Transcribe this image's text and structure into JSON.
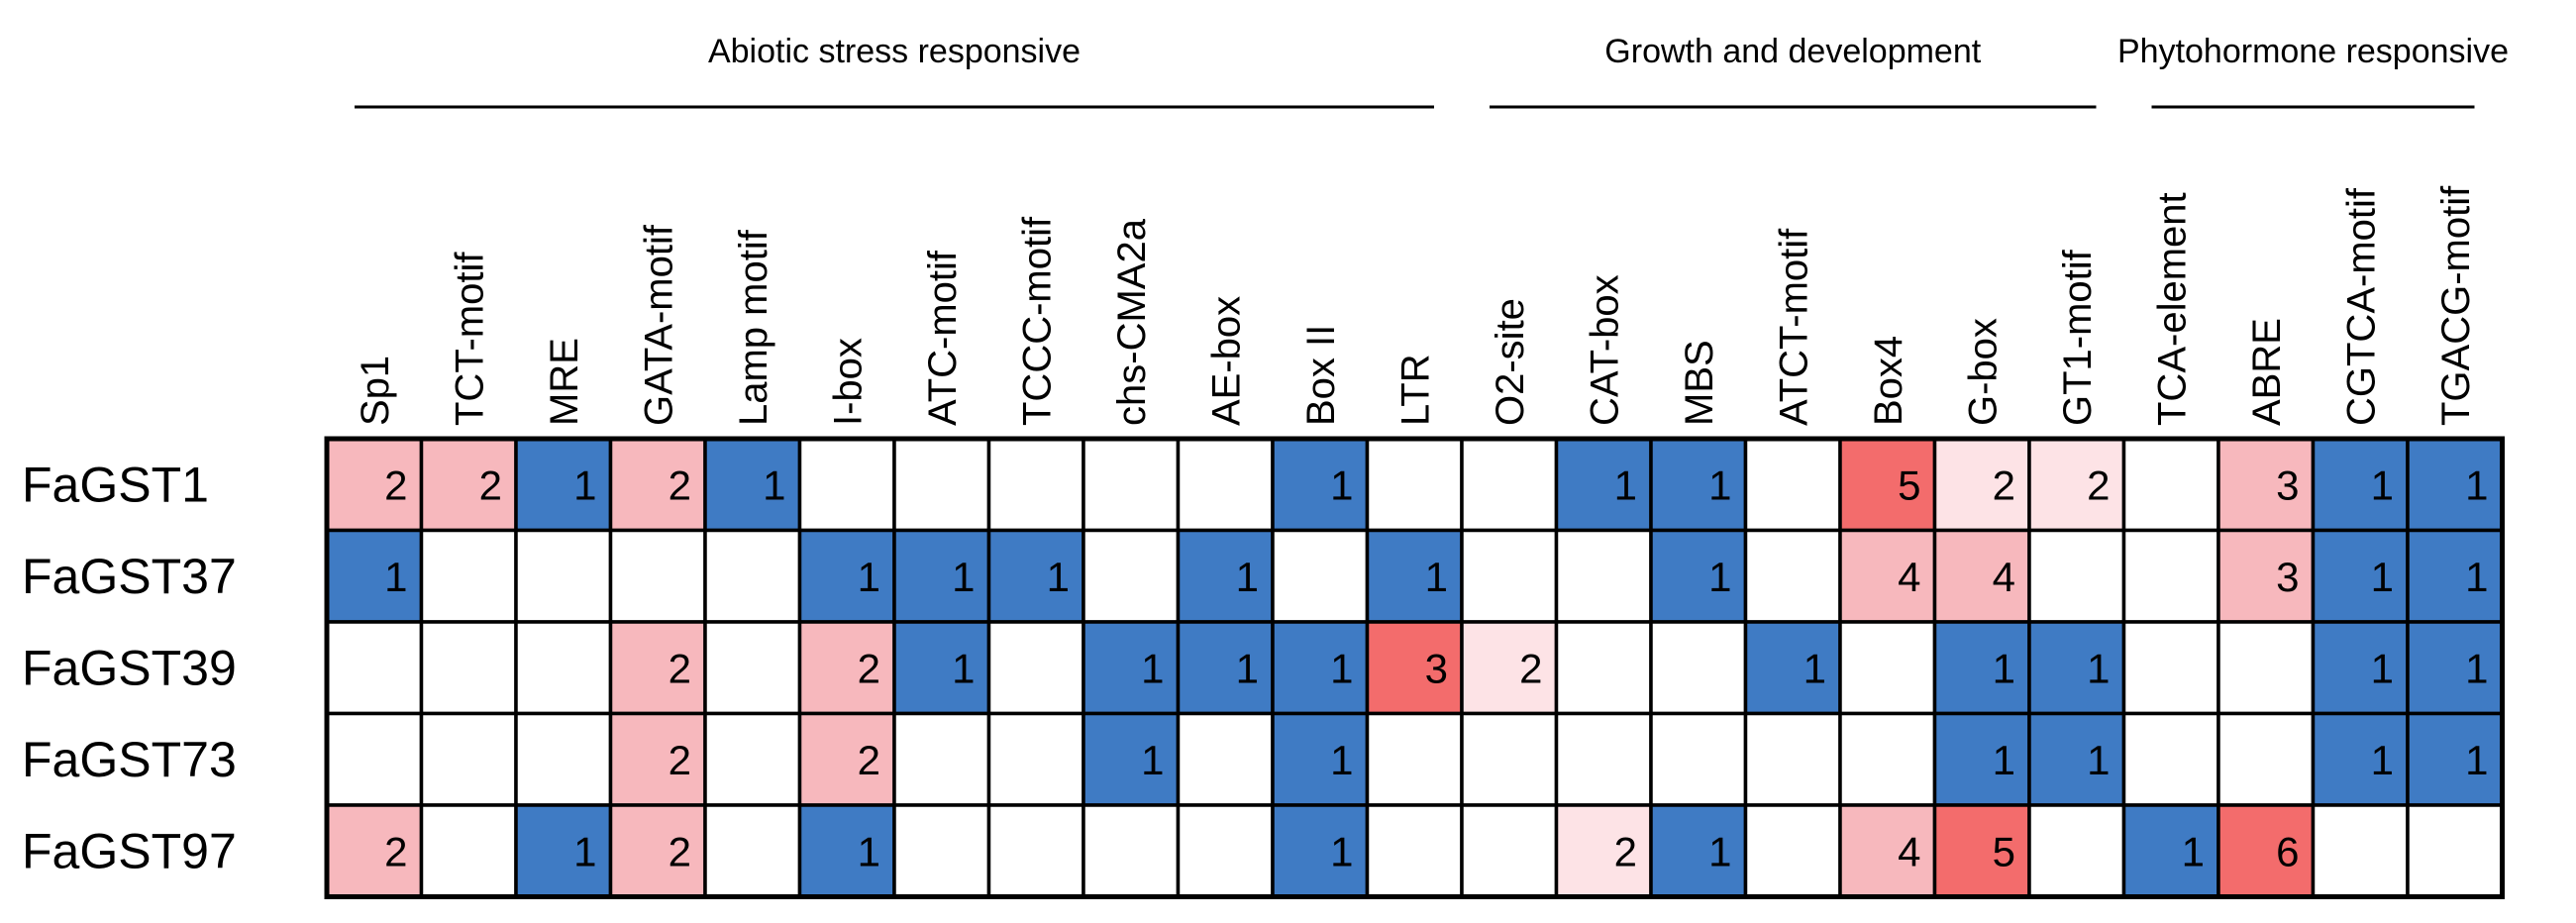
{
  "chart_data": {
    "type": "heatmap",
    "title": "",
    "groups": [
      {
        "name": "Abiotic stress responsive",
        "first": 0,
        "last": 11
      },
      {
        "name": "Growth and development",
        "first": 12,
        "last": 18
      },
      {
        "name": "Phytohormone responsive",
        "first": 19,
        "last": 22
      }
    ],
    "columns": [
      "Sp1",
      "TCT-motif",
      "MRE",
      "GATA-motif",
      "Lamp motif",
      "I-box",
      "ATC-motif",
      "TCCC-motif",
      "chs-CMA2a",
      "AE-box",
      "Box II",
      "LTR",
      "O2-site",
      "CAT-box",
      "MBS",
      "ATCT-motif",
      "Box4",
      "G-box",
      "GT1-motif",
      "TCA-element",
      "ABRE",
      "CGTCA-motif",
      "TGACG-motif"
    ],
    "rows": [
      "FaGST1",
      "FaGST37",
      "FaGST39",
      "FaGST73",
      "FaGST97"
    ],
    "values": [
      [
        2,
        2,
        1,
        2,
        1,
        null,
        null,
        null,
        null,
        null,
        1,
        null,
        null,
        1,
        1,
        null,
        5,
        2,
        2,
        null,
        3,
        1,
        1
      ],
      [
        1,
        null,
        null,
        null,
        null,
        1,
        1,
        1,
        null,
        1,
        null,
        1,
        null,
        null,
        1,
        null,
        4,
        4,
        null,
        null,
        3,
        1,
        1
      ],
      [
        null,
        null,
        null,
        2,
        null,
        2,
        1,
        null,
        1,
        1,
        1,
        3,
        2,
        null,
        null,
        1,
        null,
        1,
        1,
        null,
        null,
        1,
        1
      ],
      [
        null,
        null,
        null,
        2,
        null,
        2,
        null,
        null,
        1,
        null,
        1,
        null,
        null,
        null,
        null,
        null,
        null,
        1,
        1,
        null,
        null,
        1,
        1
      ],
      [
        2,
        null,
        1,
        2,
        null,
        1,
        null,
        null,
        null,
        null,
        1,
        null,
        null,
        2,
        1,
        null,
        4,
        5,
        null,
        1,
        6,
        null,
        null
      ]
    ],
    "color_class": [
      [
        "p",
        "p",
        "b",
        "p",
        "b",
        "",
        "",
        "",
        "",
        "",
        "b",
        "",
        "",
        "b",
        "b",
        "",
        "r",
        "l",
        "l",
        "",
        "p",
        "b",
        "b"
      ],
      [
        "b",
        "",
        "",
        "",
        "",
        "b",
        "b",
        "b",
        "",
        "b",
        "",
        "b",
        "",
        "",
        "b",
        "",
        "p",
        "p",
        "",
        "",
        "p",
        "b",
        "b"
      ],
      [
        "",
        "",
        "",
        "p",
        "",
        "p",
        "b",
        "",
        "b",
        "b",
        "b",
        "r",
        "l",
        "",
        "",
        "b",
        "",
        "b",
        "b",
        "",
        "",
        "b",
        "b"
      ],
      [
        "",
        "",
        "",
        "p",
        "",
        "p",
        "",
        "",
        "b",
        "",
        "b",
        "",
        "",
        "",
        "",
        "",
        "",
        "b",
        "b",
        "",
        "",
        "b",
        "b"
      ],
      [
        "p",
        "",
        "b",
        "p",
        "",
        "b",
        "",
        "",
        "",
        "",
        "b",
        "",
        "",
        "l",
        "b",
        "",
        "p",
        "r",
        "",
        "b",
        "r",
        "",
        ""
      ]
    ],
    "palette": {
      "b": "#3f7bc4",
      "p": "#f7b8bd",
      "l": "#fde3e6",
      "r": "#f36c6c",
      "empty": "#ffffff"
    }
  }
}
